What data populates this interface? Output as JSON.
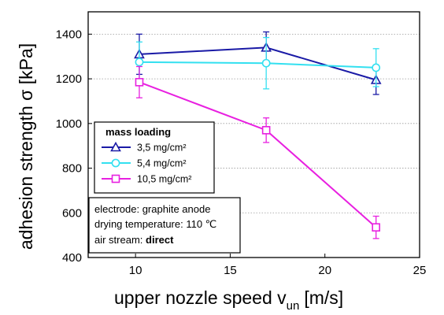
{
  "chart_data": {
    "type": "line",
    "xlabel": "upper nozzle speed v",
    "xlabel_sub": "un",
    "xlabel_unit": "[m/s]",
    "ylabel": "adhesion strength σ [kPa]",
    "xlim": [
      7.5,
      25
    ],
    "ylim": [
      400,
      1500
    ],
    "xticks": [
      10,
      15,
      20,
      25
    ],
    "yticks": [
      400,
      600,
      800,
      1000,
      1200,
      1400
    ],
    "grid": "horizontal dotted",
    "legend": {
      "title": "mass loading",
      "placement": "center-left"
    },
    "series": [
      {
        "name": "3,5 mg/cm²",
        "color": "#1a1aa6",
        "marker": "triangle",
        "x": [
          10.2,
          16.9,
          22.7
        ],
        "y": [
          1310,
          1340,
          1195
        ],
        "yerr": [
          90,
          70,
          65
        ]
      },
      {
        "name": "5,4 mg/cm²",
        "color": "#33e0f0",
        "marker": "circle",
        "x": [
          10.2,
          16.9,
          22.7
        ],
        "y": [
          1275,
          1270,
          1250
        ],
        "yerr": [
          90,
          115,
          85
        ]
      },
      {
        "name": "10,5 mg/cm²",
        "color": "#e820e0",
        "marker": "square",
        "x": [
          10.2,
          16.9,
          22.7
        ],
        "y": [
          1185,
          970,
          535
        ],
        "yerr": [
          70,
          55,
          50
        ]
      }
    ],
    "annotation": {
      "line1": "electrode: graphite anode",
      "line2": "drying temperature: 110 ℃",
      "line3_prefix": "air stream: ",
      "line3_bold": "direct"
    }
  }
}
